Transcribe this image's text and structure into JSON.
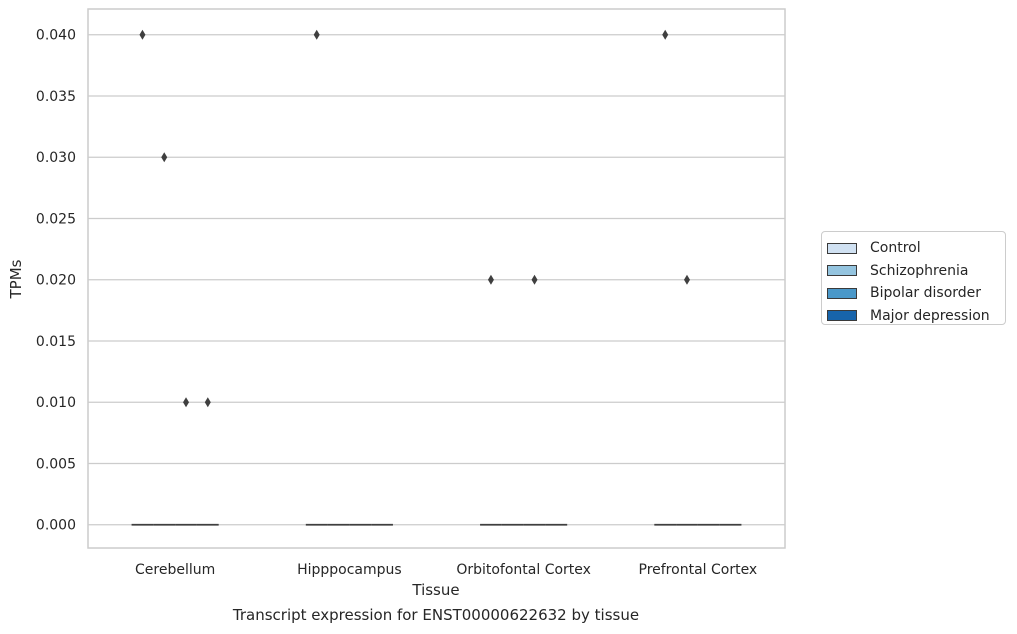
{
  "caption": "Transcript expression for ENST00000622632 by tissue",
  "chart_data": {
    "type": "box",
    "title": "",
    "xlabel": "Tissue",
    "ylabel": "TPMs",
    "ylim": [
      -0.0019,
      0.0421
    ],
    "yticks": [
      0.0,
      0.005,
      0.01,
      0.015,
      0.02,
      0.025,
      0.03,
      0.035,
      0.04
    ],
    "ytick_labels": [
      "0.000",
      "0.005",
      "0.010",
      "0.015",
      "0.020",
      "0.025",
      "0.030",
      "0.035",
      "0.040"
    ],
    "grid": true,
    "categories": [
      "Cerebellum",
      "Hipppocampus",
      "Orbitofontal Cortex",
      "Prefrontal Cortex"
    ],
    "legend_position": "right",
    "series": [
      {
        "name": "Control",
        "color": "#d0e1f2",
        "median": [
          0,
          0,
          0,
          0
        ],
        "outliers": [
          [
            0.04
          ],
          [
            0.04
          ],
          [
            0.02
          ],
          [
            0.04
          ]
        ]
      },
      {
        "name": "Schizophrenia",
        "color": "#94c4df",
        "median": [
          0,
          0,
          0,
          0
        ],
        "outliers": [
          [
            0.03
          ],
          [],
          [],
          [
            0.02
          ]
        ]
      },
      {
        "name": "Bipolar disorder",
        "color": "#4a98c9",
        "median": [
          0,
          0,
          0,
          0
        ],
        "outliers": [
          [
            0.01
          ],
          [],
          [
            0.02
          ],
          []
        ]
      },
      {
        "name": "Major depression",
        "color": "#1764ab",
        "median": [
          0,
          0,
          0,
          0
        ],
        "outliers": [
          [
            0.01
          ],
          [],
          [],
          []
        ]
      }
    ]
  }
}
